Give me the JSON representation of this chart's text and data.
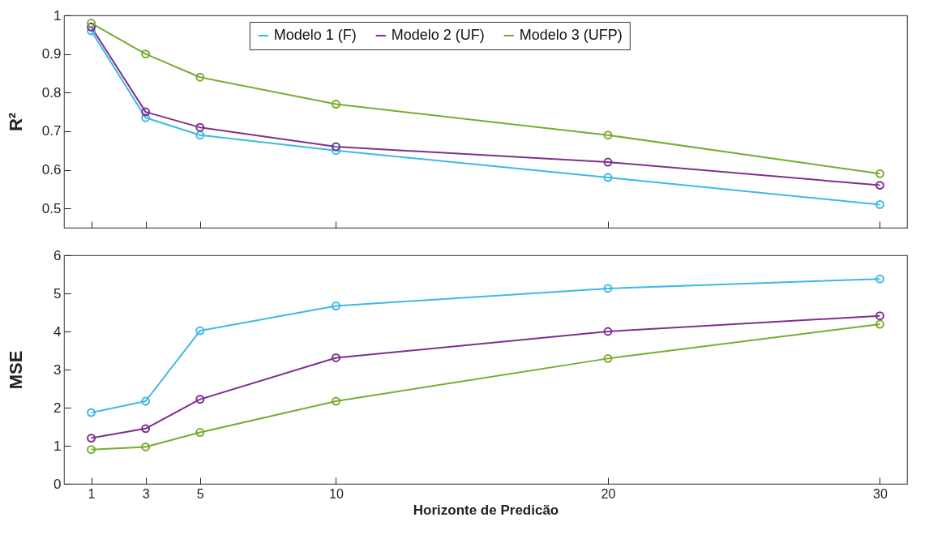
{
  "chart_data": [
    {
      "type": "line",
      "ylabel": "R²",
      "x": [
        1,
        3,
        5,
        10,
        20,
        30
      ],
      "xlim": [
        0,
        31
      ],
      "xticks": [
        1,
        3,
        5,
        10,
        20,
        30
      ],
      "ylim": [
        0.45,
        1
      ],
      "yticks": [
        0.5,
        0.6,
        0.7,
        0.8,
        0.9,
        1
      ],
      "tick_labels": "y",
      "legend": "top",
      "marker": "circle",
      "grid": false,
      "series": [
        {
          "name": "Modelo 1 (F)",
          "color": "#3cb8e6",
          "values": [
            0.96,
            0.735,
            0.69,
            0.65,
            0.58,
            0.51
          ]
        },
        {
          "name": "Modelo 2 (UF)",
          "color": "#7e2f8e",
          "values": [
            0.97,
            0.75,
            0.71,
            0.66,
            0.62,
            0.56
          ]
        },
        {
          "name": "Modelo 3 (UFP)",
          "color": "#77ac30",
          "values": [
            0.98,
            0.9,
            0.84,
            0.77,
            0.69,
            0.59
          ]
        }
      ]
    },
    {
      "type": "line",
      "xlabel": "Horizonte de Predicão",
      "ylabel": "MSE",
      "x": [
        1,
        3,
        5,
        10,
        20,
        30
      ],
      "xlim": [
        0,
        31
      ],
      "xticks": [
        1,
        3,
        5,
        10,
        20,
        30
      ],
      "ylim": [
        0,
        6
      ],
      "yticks": [
        0,
        1,
        2,
        3,
        4,
        5,
        6
      ],
      "marker": "circle",
      "grid": false,
      "series": [
        {
          "color": "#3cb8e6",
          "values": [
            1.87,
            2.17,
            4.02,
            4.67,
            5.13,
            5.38
          ]
        },
        {
          "color": "#7e2f8e",
          "values": [
            1.2,
            1.45,
            2.22,
            3.31,
            4.0,
            4.41
          ]
        },
        {
          "color": "#77ac30",
          "values": [
            0.9,
            0.97,
            1.35,
            2.17,
            3.29,
            4.19
          ]
        }
      ]
    }
  ]
}
